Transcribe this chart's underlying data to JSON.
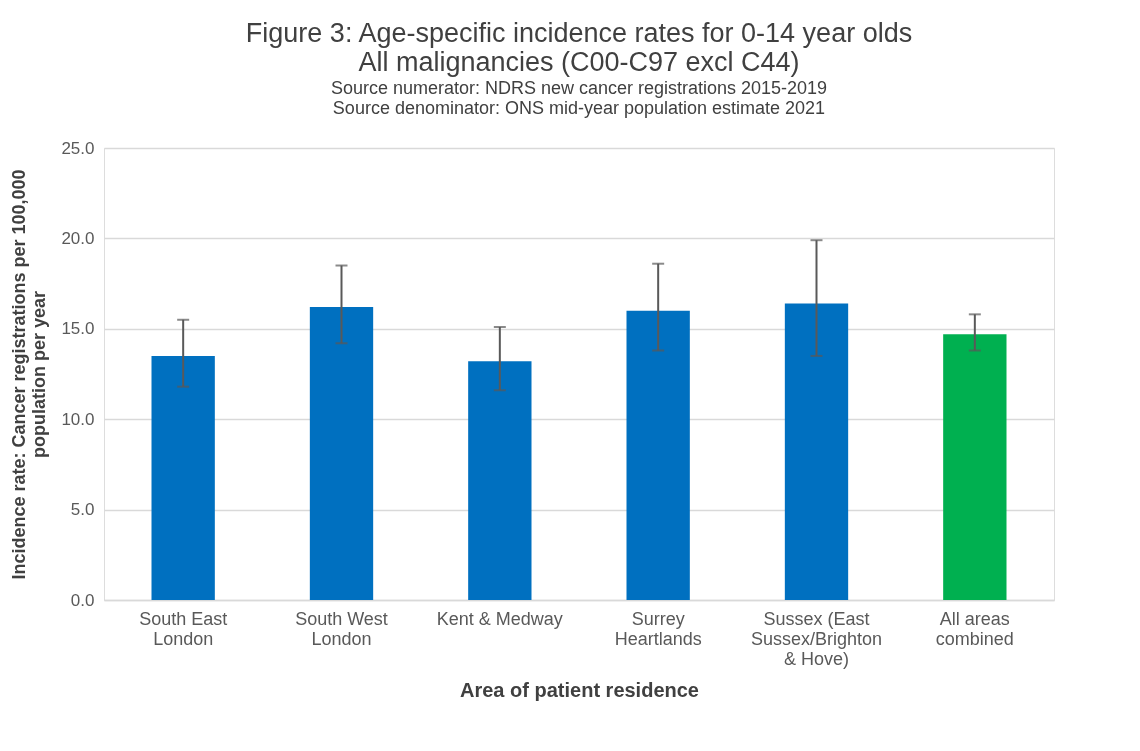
{
  "chart_data": {
    "type": "bar",
    "title": [
      "Figure 3: Age-specific incidence rates for 0-14 year olds",
      "All malignancies (C00-C97 excl C44)"
    ],
    "subtitle": [
      "Source numerator: NDRS new cancer registrations 2015-2019",
      "Source denominator: ONS mid-year population estimate 2021"
    ],
    "xlabel": "Area of patient residence",
    "ylabel": "Incidence rate: Cancer registrations per 100,000 population per year",
    "categories": [
      "South East London",
      "South West London",
      "Kent & Medway",
      "Surrey Heartlands",
      "Sussex (East Sussex/Brighton & Hove)",
      "All areas combined"
    ],
    "values": [
      13.5,
      16.2,
      13.2,
      16.0,
      16.4,
      14.7
    ],
    "colors": [
      "#0070c0",
      "#0070c0",
      "#0070c0",
      "#0070c0",
      "#0070c0",
      "#00b050"
    ],
    "errors": [
      [
        11.8,
        15.5
      ],
      [
        14.2,
        18.5
      ],
      [
        11.6,
        15.1
      ],
      [
        13.8,
        18.6
      ],
      [
        13.5,
        19.9
      ],
      [
        13.8,
        15.8
      ]
    ],
    "ylim": [
      0,
      25
    ],
    "yticks": [
      {
        "value": 0,
        "label": "0.0"
      },
      {
        "value": 5,
        "label": "5.0"
      },
      {
        "value": 10,
        "label": "10.0"
      },
      {
        "value": 15,
        "label": "15.0"
      },
      {
        "value": 20,
        "label": "20.0"
      },
      {
        "value": 25,
        "label": "25.0"
      }
    ],
    "grid": "y"
  }
}
